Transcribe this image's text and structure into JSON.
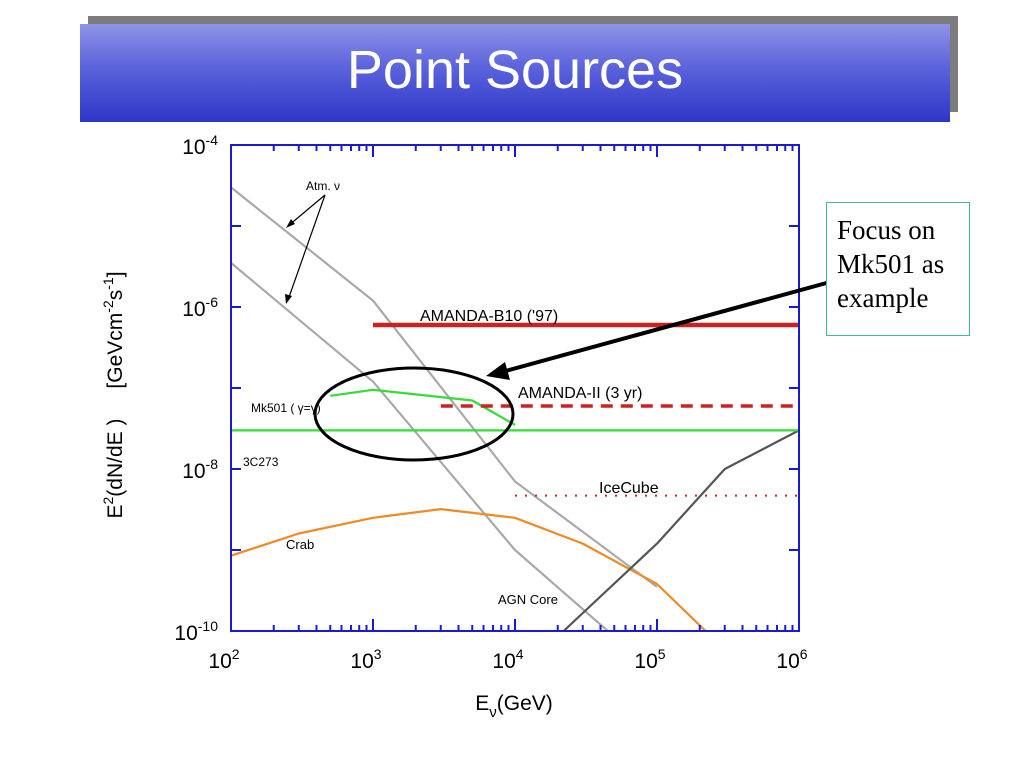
{
  "slide": {
    "title": "Point Sources"
  },
  "callout": {
    "lines": [
      "Focus on",
      "Mk501 as",
      "example"
    ]
  },
  "colors": {
    "title_bar": "#4a52d6",
    "plot_frame": "#1a1ad0",
    "amanda_b10": "#cc2222",
    "amanda_ii": "#cc2222",
    "icecube": "#cc2222",
    "mk501": "#33dd33",
    "3c273": "#33dd33",
    "crab": "#f08a24",
    "atm_nu": "#a9a9a9",
    "agn_core": "#555555",
    "callout_border": "#3fb9a2"
  },
  "chart_data": {
    "type": "line",
    "xscale": "log",
    "yscale": "log",
    "xlim": [
      100,
      1000000
    ],
    "ylim": [
      1e-10,
      0.0001
    ],
    "xlabel": {
      "base": "E",
      "sub": "ν",
      "rest": "(GeV)"
    },
    "ylabel": {
      "left": "E",
      "sup": "2",
      "mid": "(dN/dE )",
      "units_pre": "[GeVcm",
      "units_sup1": "-2",
      "units_s": "s",
      "units_sup2": "-1",
      "units_post": "]"
    },
    "xticks": [
      {
        "value": 100,
        "base": "10",
        "exp": "2"
      },
      {
        "value": 1000,
        "base": "10",
        "exp": "3"
      },
      {
        "value": 10000,
        "base": "10",
        "exp": "4"
      },
      {
        "value": 100000,
        "base": "10",
        "exp": "5"
      },
      {
        "value": 1000000,
        "base": "10",
        "exp": "6"
      }
    ],
    "yticks": [
      {
        "value": 1e-10,
        "base": "10",
        "exp": "-10"
      },
      {
        "value": 1e-08,
        "base": "10",
        "exp": "-8"
      },
      {
        "value": 1e-06,
        "base": "10",
        "exp": "-6"
      },
      {
        "value": 0.0001,
        "base": "10",
        "exp": "-4"
      }
    ],
    "series": [
      {
        "name": "AMANDA-B10 ('97)",
        "style": "solid-thick",
        "x": [
          1000,
          1000000
        ],
        "y": [
          6e-07,
          6e-07
        ]
      },
      {
        "name": "AMANDA-II (3 yr)",
        "style": "dashed-thick",
        "x": [
          3000,
          1000000
        ],
        "y": [
          6e-08,
          6e-08
        ]
      },
      {
        "name": "IceCube",
        "style": "dotted",
        "x": [
          10000,
          1000000
        ],
        "y": [
          4.7e-09,
          4.7e-09
        ]
      },
      {
        "name": "3C273",
        "style": "solid",
        "x": [
          100,
          1000000
        ],
        "y": [
          3e-08,
          3e-08
        ]
      },
      {
        "name": "Mk501 (γ=γ)",
        "style": "solid",
        "x": [
          500,
          1000,
          5000,
          10000
        ],
        "y": [
          8e-08,
          9.5e-08,
          7e-08,
          3.5e-08
        ]
      },
      {
        "name": "Crab",
        "style": "solid",
        "x": [
          100,
          300,
          1000,
          3000,
          10000,
          30000,
          100000,
          220000
        ],
        "y": [
          8.5e-10,
          1.6e-09,
          2.5e-09,
          3.2e-09,
          2.5e-09,
          1.2e-09,
          3.8e-10,
          1e-10
        ]
      },
      {
        "name": "",
        "style": "solid",
        "x": [
          100,
          1000,
          10000,
          100000
        ],
        "y": [
          3e-05,
          1.2e-06,
          7e-09,
          3.5e-10
        ]
      },
      {
        "name": "",
        "style": "solid",
        "x": [
          100,
          1000,
          10000,
          45000
        ],
        "y": [
          3.5e-06,
          1.2e-07,
          1e-09,
          1e-10
        ]
      },
      {
        "name": "AGN Core",
        "style": "solid",
        "x": [
          22000,
          100000,
          300000,
          1000000
        ],
        "y": [
          1e-10,
          1.2e-09,
          1e-08,
          3e-08
        ]
      }
    ],
    "annotations": {
      "atm_nu": "Atm. ν",
      "mk501": "Mk501 ( γ=γ)",
      "c3c273": "3C273",
      "crab": "Crab",
      "agn_core": "AGN Core",
      "amanda_b10": "AMANDA-B10 ('97)",
      "amanda_ii": "AMANDA-II (3 yr)",
      "icecube": "IceCube"
    }
  }
}
